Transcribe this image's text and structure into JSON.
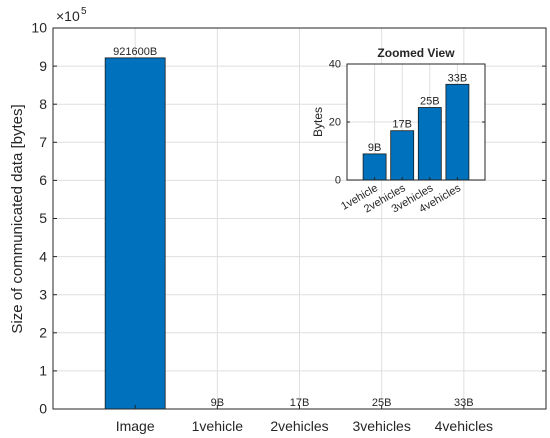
{
  "chart_data": [
    {
      "type": "bar",
      "categories": [
        "Image",
        "1vehicle",
        "2vehicles",
        "3vehicles",
        "4vehicles"
      ],
      "values": [
        921600,
        9,
        17,
        25,
        33
      ],
      "data_labels": [
        "921600B",
        "9B",
        "17B",
        "25B",
        "33B"
      ],
      "ylabel": "Size of communicated data [bytes]",
      "ylim": [
        0,
        1000000
      ],
      "yticks": [
        "0",
        "1",
        "2",
        "3",
        "4",
        "5",
        "6",
        "7",
        "8",
        "9",
        "10"
      ],
      "y_exponent_label": "×10",
      "y_exponent_power": "5",
      "grid": true,
      "color": "#0072BD"
    },
    {
      "type": "bar",
      "title": "Zoomed View",
      "categories": [
        "1vehicle",
        "2vehicles",
        "3vehicles",
        "4vehicles"
      ],
      "values": [
        9,
        17,
        25,
        33
      ],
      "data_labels": [
        "9B",
        "17B",
        "25B",
        "33B"
      ],
      "ylabel": "Bytes",
      "ylim": [
        0,
        40
      ],
      "yticks": [
        "0",
        "20",
        "40"
      ],
      "grid": true,
      "color": "#0072BD"
    }
  ]
}
